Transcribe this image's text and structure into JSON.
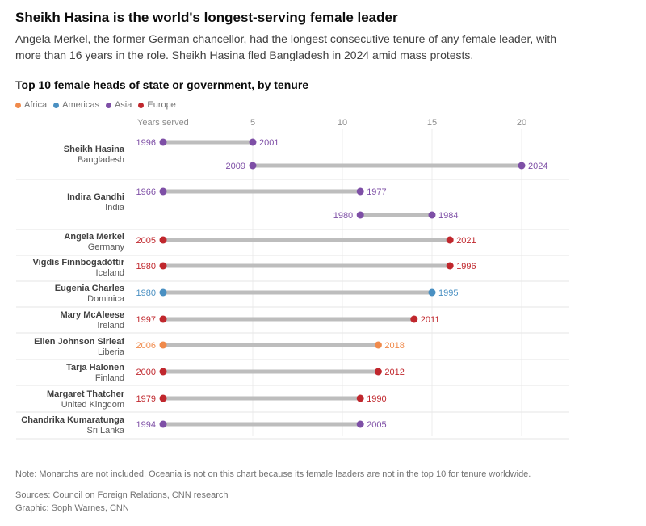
{
  "header": {
    "headline": "Sheikh Hasina is the world's longest-serving female leader",
    "subtitle": "Angela Merkel, the former German chancellor, had the longest consecutive tenure of any female leader, with more than 16 years in the role. Sheikh Hasina fled Bangladesh in 2024 amid mass protests."
  },
  "chart_data": {
    "type": "dumbbell",
    "title": "Top 10 female heads of state or government, by tenure",
    "xlabel": "Years served",
    "xticks": [
      5,
      10,
      15,
      20
    ],
    "xlim": [
      0,
      22
    ],
    "legend": [
      {
        "name": "Africa",
        "color": "#f08a4b"
      },
      {
        "name": "Americas",
        "color": "#4a90c2"
      },
      {
        "name": "Asia",
        "color": "#7e4fa6"
      },
      {
        "name": "Europe",
        "color": "#c0272d"
      }
    ],
    "leaders": [
      {
        "name": "Sheikh Hasina",
        "country": "Bangladesh",
        "region": "Asia",
        "terms": [
          {
            "start": 1996,
            "end": 2001,
            "offset": 0
          },
          {
            "start": 2009,
            "end": 2024,
            "offset": 5
          }
        ]
      },
      {
        "name": "Indira Gandhi",
        "country": "India",
        "region": "Asia",
        "terms": [
          {
            "start": 1966,
            "end": 1977,
            "offset": 0
          },
          {
            "start": 1980,
            "end": 1984,
            "offset": 11
          }
        ]
      },
      {
        "name": "Angela Merkel",
        "country": "Germany",
        "region": "Europe",
        "terms": [
          {
            "start": 2005,
            "end": 2021,
            "offset": 0
          }
        ]
      },
      {
        "name": "Vigdís Finnbogadóttir",
        "country": "Iceland",
        "region": "Europe",
        "terms": [
          {
            "start": 1980,
            "end": 1996,
            "offset": 0
          }
        ]
      },
      {
        "name": "Eugenia Charles",
        "country": "Dominica",
        "region": "Americas",
        "terms": [
          {
            "start": 1980,
            "end": 1995,
            "offset": 0
          }
        ]
      },
      {
        "name": "Mary McAleese",
        "country": "Ireland",
        "region": "Europe",
        "terms": [
          {
            "start": 1997,
            "end": 2011,
            "offset": 0
          }
        ]
      },
      {
        "name": "Ellen Johnson Sirleaf",
        "country": "Liberia",
        "region": "Africa",
        "terms": [
          {
            "start": 2006,
            "end": 2018,
            "offset": 0
          }
        ]
      },
      {
        "name": "Tarja Halonen",
        "country": "Finland",
        "region": "Europe",
        "terms": [
          {
            "start": 2000,
            "end": 2012,
            "offset": 0
          }
        ]
      },
      {
        "name": "Margaret Thatcher",
        "country": "United Kingdom",
        "region": "Europe",
        "terms": [
          {
            "start": 1979,
            "end": 1990,
            "offset": 0
          }
        ]
      },
      {
        "name": "Chandrika Kumaratunga",
        "country": "Sri Lanka",
        "region": "Asia",
        "terms": [
          {
            "start": 1994,
            "end": 2005,
            "offset": 0
          }
        ]
      }
    ]
  },
  "footer": {
    "note": "Note: Monarchs are not included. Oceania is not on this chart because its female leaders are not in the top 10 for tenure worldwide.",
    "sources": "Sources: Council on Foreign Relations, CNN research",
    "graphic": "Graphic: Soph Warnes, CNN"
  }
}
